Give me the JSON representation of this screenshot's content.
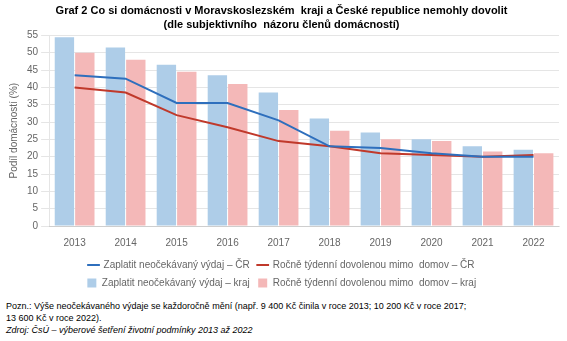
{
  "chart_data": {
    "type": "bar",
    "title": "Graf 2 Co si domácnosti v Moravskoslezském  kraji a České republice nemohly dovolit",
    "subtitle": "(dle subjektivního  názoru členů domácností)",
    "ylabel": "Podíl domácností (%)",
    "categories": [
      "2013",
      "2014",
      "2015",
      "2016",
      "2017",
      "2018",
      "2019",
      "2020",
      "2021",
      "2022"
    ],
    "series": [
      {
        "name": "Zaplatit neočekávaný výdaj – kraj",
        "type": "bar",
        "color": "#aecde8",
        "values": [
          54.5,
          51.5,
          46.5,
          43.5,
          38.5,
          31.0,
          27.0,
          25.0,
          23.0,
          22.0
        ]
      },
      {
        "name": "Ročně týdenní dovolenou mimo  domov – kraj",
        "type": "bar",
        "color": "#f4b8b8",
        "values": [
          50.0,
          48.0,
          44.5,
          41.0,
          33.5,
          27.5,
          25.0,
          24.5,
          21.5,
          21.0
        ]
      },
      {
        "name": "Zaplatit neočekávaný výdaj – ČR",
        "type": "line",
        "color": "#2e6fbd",
        "values": [
          43.5,
          42.5,
          35.5,
          35.5,
          30.5,
          23.0,
          22.5,
          21.0,
          20.0,
          20.0
        ]
      },
      {
        "name": "Ročně týdenní dovolenou mimo  domov – ČR",
        "type": "line",
        "color": "#c0392b",
        "values": [
          40.0,
          38.5,
          32.0,
          28.5,
          24.5,
          23.0,
          21.0,
          20.5,
          20.0,
          20.5
        ]
      }
    ],
    "ylim": [
      0,
      55
    ],
    "yticks": [
      0,
      5,
      10,
      15,
      20,
      25,
      30,
      35,
      40,
      45,
      50,
      55
    ],
    "grid": true,
    "legend": "bottom",
    "annotations": [
      "Pozn.: Výše neočekávaného výdaje se každoročně mění (např. 9 400 Kč činila v roce 2013; 10 200 Kč v roce 2017;",
      "13 600 Kč v roce 2022).",
      "Zdroj: ČsÚ – výberové šetření životní podmínky 2013 až 2022"
    ]
  }
}
